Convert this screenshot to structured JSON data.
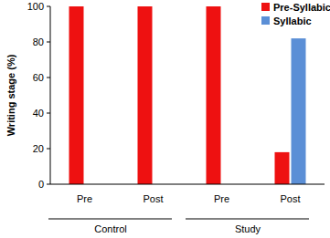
{
  "chart_data": {
    "type": "bar",
    "y_label": "Writing stage (%)",
    "categories": [
      "Pre",
      "Post",
      "Pre",
      "Post"
    ],
    "groups": [
      {
        "name": "Control",
        "span": 2
      },
      {
        "name": "Study",
        "span": 2
      }
    ],
    "series": [
      {
        "name": "Pre-Syllabic",
        "color": "#ee1111",
        "values": [
          100,
          100,
          100,
          18
        ]
      },
      {
        "name": "Syllabic",
        "color": "#5b8fd6",
        "values": [
          0,
          0,
          0,
          82
        ]
      }
    ],
    "ylim": [
      0,
      100
    ],
    "yticks": [
      0,
      20,
      40,
      60,
      80,
      100
    ],
    "grid": false,
    "legend": "upper right"
  }
}
